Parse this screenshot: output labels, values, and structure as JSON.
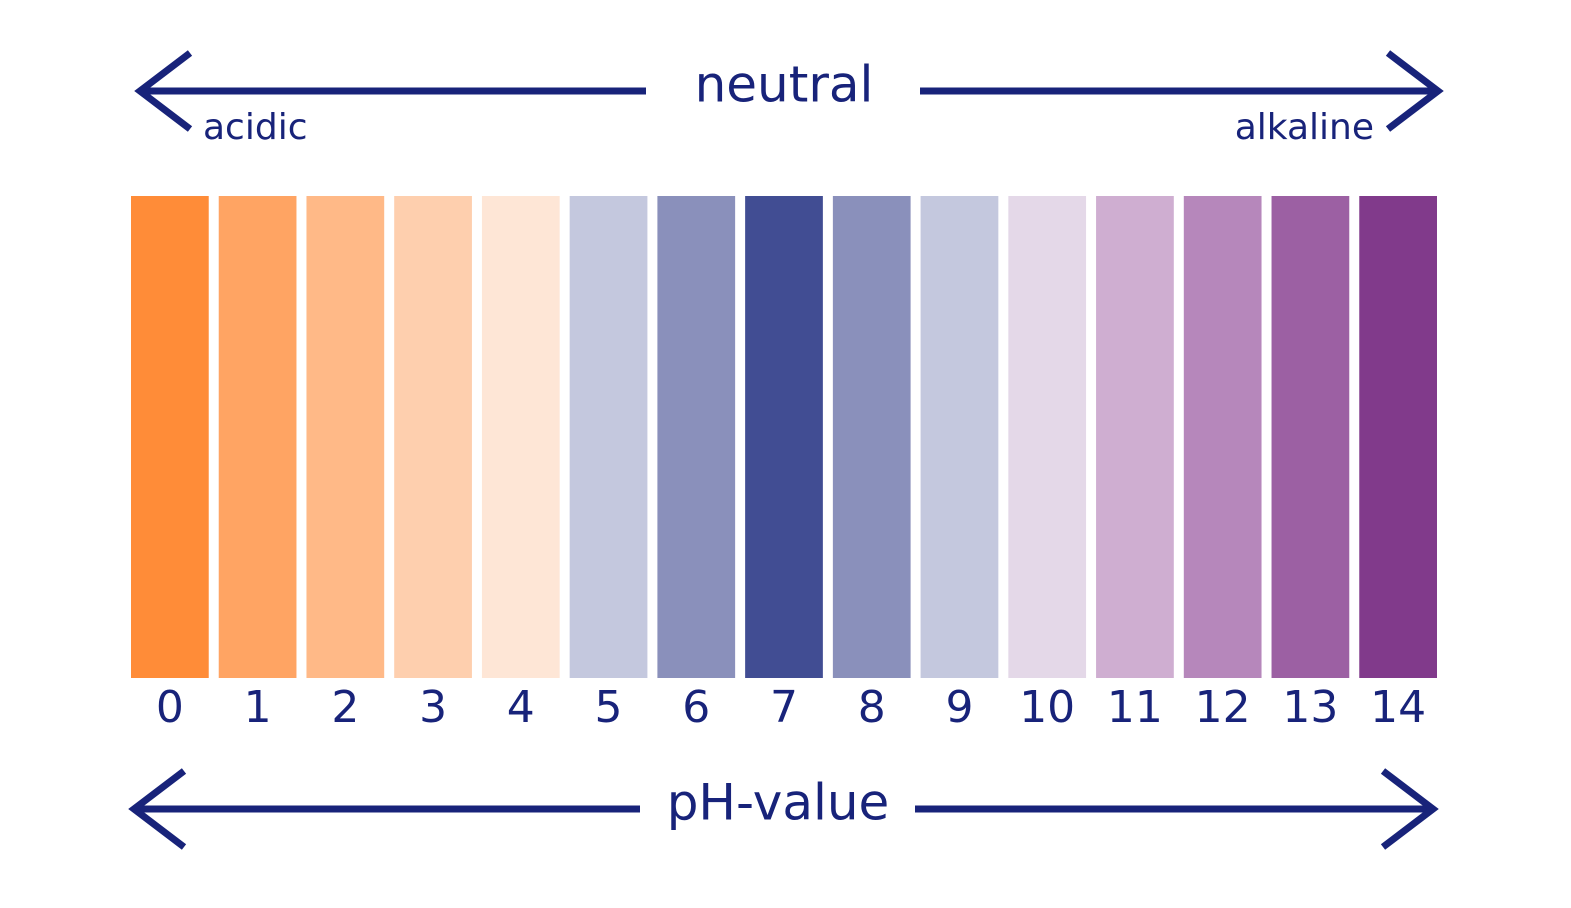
{
  "top_label": "neutral",
  "left_label": "acidic",
  "right_label": "alkaline",
  "bottom_label": "pH-value",
  "swatches": [
    {
      "label": "0",
      "color": "#ff8c38"
    },
    {
      "label": "1",
      "color": "#ffa463"
    },
    {
      "label": "2",
      "color": "#ffb987"
    },
    {
      "label": "3",
      "color": "#fecfae"
    },
    {
      "label": "4",
      "color": "#fee6d6"
    },
    {
      "label": "5",
      "color": "#c4c8de"
    },
    {
      "label": "6",
      "color": "#8a90bb"
    },
    {
      "label": "7",
      "color": "#414d93"
    },
    {
      "label": "8",
      "color": "#8a90bb"
    },
    {
      "label": "9",
      "color": "#c4c8de"
    },
    {
      "label": "10",
      "color": "#e4d8e8"
    },
    {
      "label": "11",
      "color": "#cfaed1"
    },
    {
      "label": "12",
      "color": "#b687bb"
    },
    {
      "label": "13",
      "color": "#9c60a3"
    },
    {
      "label": "14",
      "color": "#813a8b"
    }
  ]
}
